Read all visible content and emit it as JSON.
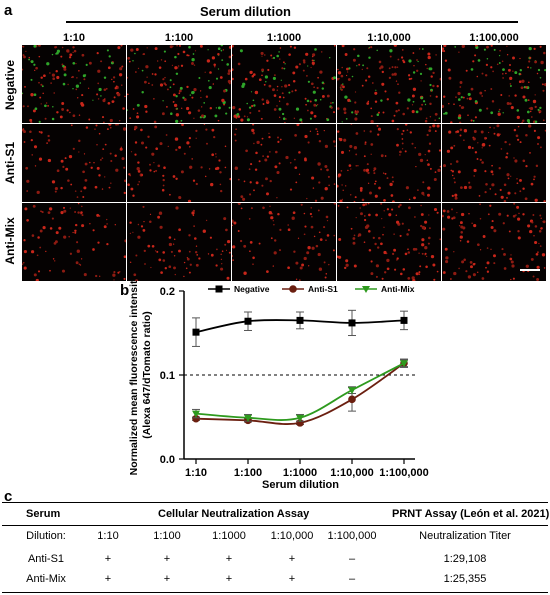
{
  "panel_a": {
    "letter": "a",
    "serum_dilution_title": "Serum dilution",
    "columns": [
      "1:10",
      "1:100",
      "1:1000",
      "1:10,000",
      "1:100,000"
    ],
    "rows": [
      "Negative",
      "Anti-S1",
      "Anti-Mix"
    ]
  },
  "panel_b": {
    "letter": "b",
    "chart_data": {
      "type": "line",
      "categories": [
        "1:10",
        "1:100",
        "1:1000",
        "1:10,000",
        "1:100,000"
      ],
      "xlabel": "Serum dilution",
      "ylabel": "Normalized mean fluorescence intensity (Alexa 647/dTomato ratio)",
      "ylabel_lines": [
        "Normalized mean fluorescence intensity",
        "(Alexa 647/dTomato ratio)"
      ],
      "ylim": [
        0,
        0.2
      ],
      "yticks": [
        "0.0",
        "0.1",
        "0.2"
      ],
      "reference_line": 0.1,
      "legend": "top",
      "series": [
        {
          "name": "Negative",
          "color": "#000000",
          "marker": "square",
          "values": [
            0.151,
            0.164,
            0.165,
            0.162,
            0.165
          ],
          "errors": [
            0.017,
            0.011,
            0.01,
            0.015,
            0.011
          ]
        },
        {
          "name": "Anti-S1",
          "color": "#6b1f10",
          "marker": "circle",
          "values": [
            0.048,
            0.046,
            0.043,
            0.071,
            0.114
          ],
          "errors": [
            0.002,
            0.002,
            0.002,
            0.014,
            0.005
          ]
        },
        {
          "name": "Anti-Mix",
          "color": "#2e9a1e",
          "marker": "triangle-down",
          "values": [
            0.054,
            0.049,
            0.049,
            0.082,
            0.114
          ],
          "errors": [
            0.005,
            0.004,
            0.004,
            0.004,
            0.004
          ]
        }
      ]
    }
  },
  "panel_c": {
    "letter": "c",
    "headers": {
      "serum": "Serum",
      "cellular": "Cellular Neutralization Assay",
      "prnt": "PRNT Assay (León et al. 2021)"
    },
    "rows": [
      {
        "label": "Dilution:",
        "cells": [
          "1:10",
          "1:100",
          "1:1000",
          "1:10,000",
          "1:100,000"
        ],
        "prnt": "Neutralization Titer"
      },
      {
        "label": "Anti-S1",
        "cells": [
          "+",
          "+",
          "+",
          "+",
          "–"
        ],
        "prnt": "1:29,108"
      },
      {
        "label": "Anti-Mix",
        "cells": [
          "+",
          "+",
          "+",
          "+",
          "–"
        ],
        "prnt": "1:25,355"
      }
    ]
  }
}
